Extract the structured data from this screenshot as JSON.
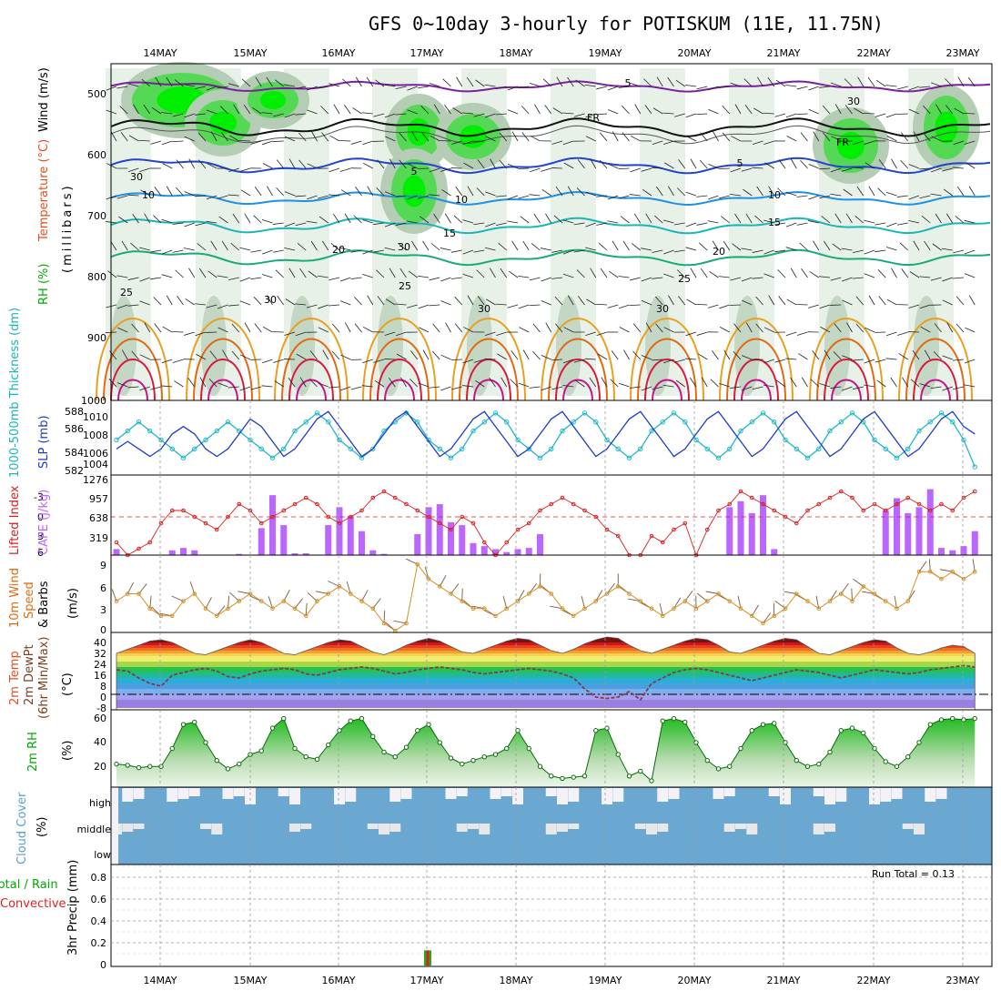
{
  "title": "GFS 0~10day 3-hourly for POTISKUM (11E, 11.75N)",
  "dates": [
    "14MAY",
    "15MAY",
    "16MAY",
    "17MAY",
    "18MAY",
    "19MAY",
    "20MAY",
    "21MAY",
    "22MAY",
    "23MAY"
  ],
  "colors": {
    "rh_dark": "#7ea27e",
    "rh_mid": "#b5ccb5",
    "rh_light": "#e6f0e6",
    "rh_green": "#55d955",
    "rh_bright": "#00ee00",
    "purple": "#7b1fa2",
    "blue": "#2244cc",
    "lightblue": "#1e90e6",
    "cyan": "#1ab5b5",
    "teal": "#1aaa7a",
    "orange": "#e8a020",
    "darkorange": "#e06a10",
    "red": "#d81b3c",
    "magenta": "#cc1188",
    "cape": "#bb66ff",
    "li": "#d82020",
    "wind": "#d4902a",
    "slp": "#1e3cc8",
    "thick": "#22b8c8",
    "cloud": "#6aa8d2"
  },
  "panels": {
    "upper": {
      "label_wind": "Wind (m/s)",
      "label_temp": "Temperature (°C)",
      "label_rh": "RH (%)",
      "label_mb": "(millibars)",
      "y_ticks": [
        "500",
        "600",
        "700",
        "800",
        "900",
        "1000"
      ],
      "contour_labels": [
        "5",
        "FR",
        "FR",
        "5",
        "5",
        "10",
        "10",
        "10",
        "15",
        "15",
        "20",
        "20",
        "25",
        "25",
        "25",
        "30",
        "30",
        "30",
        "30",
        "30",
        "30"
      ]
    },
    "slp": {
      "label_thick": "1000-500mb Thickness (dm)",
      "label_slp": "SLP (mb)",
      "left_ticks": [
        "588",
        "586",
        "584",
        "582"
      ],
      "right_ticks": [
        "1010",
        "1008",
        "1006",
        "1004"
      ]
    },
    "cape": {
      "label_li": "Lifted Index",
      "label_cape": "CAPE (J/kg)",
      "li_ticks": [
        "-3",
        "0",
        "3",
        "6"
      ],
      "cape_ticks": [
        "1276",
        "957",
        "638",
        "319"
      ]
    },
    "wind10": {
      "label": "10m Wind Speed & Barbs (m/s)",
      "label_1": "10m Wind",
      "label_2": "Speed",
      "label_3": "& Barbs",
      "label_4": "(m/s)",
      "y_ticks": [
        "9",
        "6",
        "3",
        "0"
      ]
    },
    "temp2m": {
      "label_1": "2m Temp",
      "label_2": "2m DewPt",
      "label_3": "(6hr Min/Max)",
      "label_4": "(°C)",
      "y_ticks": [
        "40",
        "32",
        "24",
        "16",
        "8",
        "0",
        "-8"
      ]
    },
    "rh2m": {
      "label": "2m RH",
      "unit": "(%)",
      "y_ticks": [
        "60",
        "40",
        "20"
      ]
    },
    "cloud": {
      "label": "Cloud Cover",
      "unit": "(%)",
      "levels": [
        "high",
        "middle",
        "low"
      ]
    },
    "precip": {
      "label_1": "Total / Rain",
      "label_2": "Convective",
      "label_3": "3hr Precip (mm)",
      "run_total": "Run Total = 0.13",
      "y_ticks": [
        "0.8",
        "0.6",
        "0.4",
        "0.2",
        "0"
      ]
    }
  },
  "chart_data": [
    {
      "type": "line",
      "title": "SLP (mb) and 1000-500mb Thickness (dm)",
      "x": "3-hourly, 14MAY to 23MAY",
      "series": [
        {
          "name": "SLP (mb)",
          "values": [
            1006,
            1007,
            1006,
            1005,
            1006,
            1008,
            1009,
            1008,
            1006,
            1005,
            1006,
            1008,
            1010,
            1009,
            1007,
            1005,
            1006,
            1008,
            1010,
            1011,
            1009,
            1007,
            1005,
            1006,
            1008,
            1010,
            1011,
            1009,
            1007,
            1005,
            1006,
            1008,
            1010,
            1011,
            1009,
            1007,
            1005,
            1006,
            1008,
            1010,
            1011,
            1009,
            1007,
            1005,
            1006,
            1008,
            1010,
            1011,
            1009,
            1007,
            1005,
            1006,
            1008,
            1010,
            1011,
            1009,
            1007,
            1005,
            1006,
            1008,
            1010,
            1011,
            1009,
            1007,
            1005,
            1006,
            1008,
            1010,
            1011,
            1009,
            1007,
            1005,
            1006,
            1008,
            1010,
            1011,
            1009,
            1008
          ]
        },
        {
          "name": "1000-500mb Thickness (dm)",
          "values": [
            585,
            586,
            587,
            586,
            585,
            584,
            583,
            584,
            585,
            586,
            587,
            586,
            585,
            584,
            583,
            584,
            586,
            587,
            588,
            587,
            585,
            584,
            583,
            584,
            586,
            587,
            588,
            587,
            585,
            584,
            583,
            584,
            586,
            587,
            588,
            587,
            585,
            584,
            583,
            584,
            586,
            587,
            588,
            587,
            585,
            584,
            583,
            584,
            586,
            587,
            588,
            587,
            585,
            584,
            583,
            584,
            586,
            587,
            588,
            587,
            585,
            584,
            583,
            584,
            586,
            587,
            588,
            587,
            585,
            584,
            583,
            584,
            586,
            587,
            588,
            587,
            585,
            582
          ]
        }
      ]
    },
    {
      "type": "bar",
      "title": "CAPE (J/kg)",
      "values": [
        100,
        0,
        0,
        0,
        0,
        80,
        120,
        80,
        0,
        0,
        0,
        20,
        0,
        450,
        1000,
        500,
        30,
        30,
        0,
        500,
        800,
        650,
        400,
        80,
        20,
        0,
        0,
        350,
        800,
        850,
        550,
        500,
        200,
        150,
        100,
        50,
        100,
        120,
        350,
        0,
        0,
        0,
        0,
        0,
        0,
        0,
        0,
        0,
        0,
        0,
        0,
        0,
        0,
        0,
        0,
        800,
        900,
        700,
        1000,
        100,
        0,
        0,
        0,
        0,
        0,
        0,
        0,
        0,
        0,
        750,
        950,
        700,
        800,
        1100,
        120,
        80,
        150,
        400
      ]
    },
    {
      "type": "line",
      "title": "Lifted Index",
      "values": [
        4,
        6,
        5,
        4,
        1,
        -1,
        -1,
        0,
        1,
        2,
        0,
        -2,
        -1,
        1,
        0,
        -1,
        -2,
        -3,
        -2,
        0,
        1,
        0,
        -1,
        -3,
        -4,
        -3,
        -2,
        -1,
        0,
        1,
        2,
        0,
        1,
        4,
        6,
        4,
        2,
        1,
        -1,
        -2,
        -3,
        -2,
        -1,
        0,
        2,
        3,
        6,
        6,
        3,
        4,
        2,
        1,
        6,
        2,
        -1,
        -2,
        -4,
        -3,
        -2,
        -1,
        0,
        1,
        -1,
        -2,
        -3,
        -4,
        -3,
        -1,
        -2,
        -1,
        -2,
        -3,
        -2,
        -1,
        -2,
        -1,
        -3,
        -4
      ]
    },
    {
      "type": "line",
      "title": "10m Wind Speed (m/s)",
      "values": [
        4,
        5,
        5,
        3,
        2,
        2,
        4,
        5,
        3,
        2,
        3,
        4,
        5,
        4,
        3,
        4,
        3,
        2,
        4,
        5,
        6,
        5,
        4,
        3,
        1,
        0,
        1,
        9,
        7,
        6,
        5,
        4,
        3,
        3,
        2,
        3,
        4,
        5,
        6,
        5,
        3,
        2,
        3,
        4,
        5,
        6,
        5,
        4,
        3,
        2,
        3,
        4,
        3,
        4,
        5,
        4,
        3,
        2,
        1,
        2,
        3,
        5,
        4,
        3,
        4,
        5,
        4,
        6,
        5,
        4,
        3,
        4,
        8,
        8,
        7,
        8,
        7,
        8
      ]
    },
    {
      "type": "area",
      "title": "2m Temp (°C)",
      "series": [
        {
          "name": "2m Temp",
          "values": [
            30,
            33,
            36,
            39,
            40,
            38,
            34,
            30,
            29,
            32,
            35,
            38,
            40,
            38,
            34,
            30,
            29,
            32,
            35,
            38,
            40,
            39,
            35,
            31,
            29,
            32,
            36,
            39,
            41,
            39,
            35,
            31,
            30,
            33,
            36,
            39,
            41,
            40,
            36,
            32,
            30,
            33,
            37,
            40,
            42,
            41,
            36,
            32,
            30,
            33,
            36,
            39,
            41,
            40,
            36,
            31,
            30,
            33,
            36,
            39,
            41,
            40,
            35,
            30,
            29,
            32,
            35,
            38,
            40,
            39,
            34,
            30,
            29,
            31,
            34,
            36,
            35,
            30
          ]
        },
        {
          "name": "2m DewPt",
          "values": [
            18,
            17,
            12,
            8,
            6,
            14,
            16,
            18,
            19,
            17,
            13,
            12,
            15,
            17,
            18,
            19,
            18,
            15,
            14,
            16,
            18,
            19,
            20,
            19,
            17,
            15,
            16,
            18,
            19,
            20,
            19,
            18,
            16,
            15,
            16,
            17,
            18,
            19,
            18,
            17,
            15,
            12,
            4,
            -2,
            -3,
            -2,
            2,
            -4,
            8,
            12,
            16,
            18,
            19,
            18,
            16,
            14,
            12,
            10,
            12,
            14,
            16,
            18,
            17,
            16,
            14,
            12,
            14,
            16,
            18,
            17,
            16,
            15,
            16,
            18,
            19,
            20,
            21,
            20
          ]
        }
      ]
    },
    {
      "type": "area",
      "title": "2m RH (%)",
      "values": [
        22,
        21,
        19,
        20,
        20,
        35,
        55,
        57,
        40,
        25,
        18,
        22,
        30,
        33,
        52,
        60,
        35,
        28,
        26,
        38,
        50,
        58,
        60,
        45,
        32,
        28,
        36,
        50,
        55,
        40,
        27,
        22,
        25,
        28,
        30,
        35,
        50,
        35,
        20,
        12,
        10,
        11,
        12,
        50,
        52,
        30,
        12,
        16,
        8,
        58,
        60,
        57,
        40,
        25,
        18,
        20,
        35,
        50,
        55,
        56,
        40,
        25,
        20,
        22,
        32,
        50,
        52,
        48,
        35,
        24,
        20,
        28,
        40,
        55,
        59,
        60,
        59,
        60
      ]
    },
    {
      "type": "bar",
      "title": "3hr Precip (mm)",
      "values": [
        0,
        0,
        0,
        0,
        0,
        0,
        0,
        0,
        0,
        0,
        0,
        0,
        0,
        0,
        0,
        0,
        0,
        0,
        0,
        0,
        0,
        0,
        0,
        0,
        0,
        0,
        0,
        0.13,
        0,
        0,
        0,
        0,
        0,
        0,
        0,
        0,
        0,
        0,
        0,
        0,
        0,
        0,
        0,
        0,
        0,
        0,
        0,
        0,
        0,
        0,
        0,
        0,
        0,
        0,
        0,
        0,
        0,
        0,
        0,
        0,
        0,
        0,
        0,
        0,
        0,
        0,
        0,
        0,
        0,
        0,
        0,
        0,
        0,
        0,
        0,
        0,
        0,
        0
      ],
      "ylim": [
        0,
        0.9
      ]
    }
  ]
}
